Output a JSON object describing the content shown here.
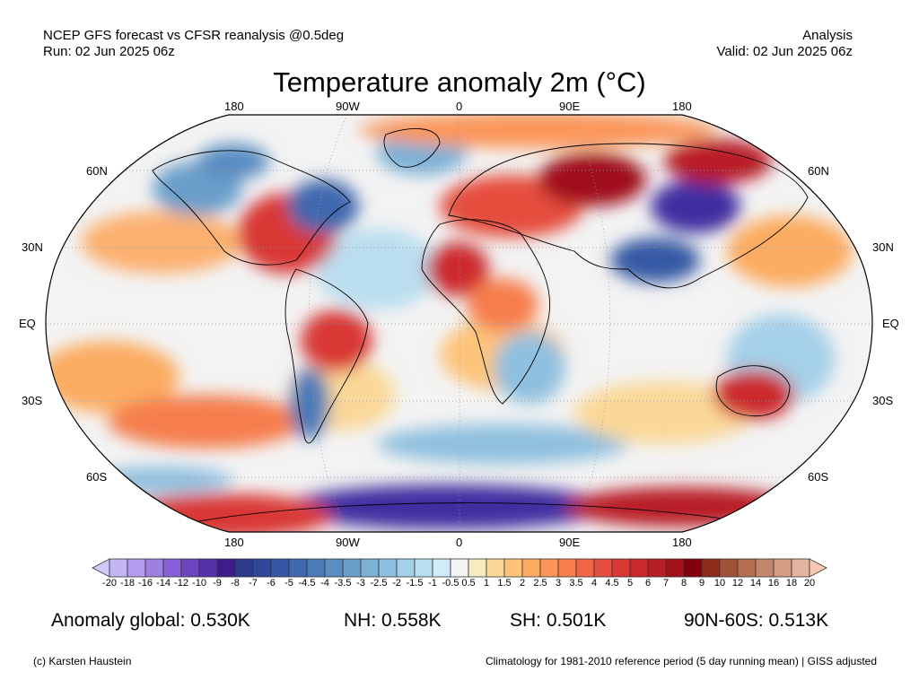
{
  "header": {
    "left_line1": "NCEP GFS forecast vs CFSR reanalysis @0.5deg",
    "left_line2": "Run: 02 Jun 2025 06z",
    "right_line1": "Analysis",
    "right_line2": "Valid: 02 Jun 2025 06z"
  },
  "title": "Temperature anomaly 2m (°C)",
  "map": {
    "lon_labels_top": [
      "180",
      "90W",
      "0",
      "90E",
      "180"
    ],
    "lon_labels_bottom": [
      "180",
      "90W",
      "0",
      "90E",
      "180"
    ],
    "lat_labels": [
      "60N",
      "30N",
      "EQ",
      "30S",
      "60S"
    ]
  },
  "colorbar": {
    "ticks": [
      "-20",
      "-18",
      "-16",
      "-14",
      "-12",
      "-10",
      "-9",
      "-8",
      "-7",
      "-6",
      "-5",
      "-4.5",
      "-4",
      "-3.5",
      "-3",
      "-2.5",
      "-2",
      "-1.5",
      "-1",
      "-0.5",
      "0.5",
      "1",
      "1.5",
      "2",
      "2.5",
      "3",
      "3.5",
      "4",
      "4.5",
      "5",
      "6",
      "7",
      "8",
      "9",
      "10",
      "12",
      "14",
      "16",
      "18",
      "20"
    ],
    "colors": [
      "#d2c8f8",
      "#c4b6f4",
      "#b19ced",
      "#9d80e2",
      "#865fd4",
      "#6d46bf",
      "#5632a8",
      "#3e1d8a",
      "#2c3a8c",
      "#30489c",
      "#3658a4",
      "#3f68ae",
      "#4a7ab8",
      "#5a8dc2",
      "#6a9fcb",
      "#7cb0d5",
      "#8fc0df",
      "#a4d0e8",
      "#badeef",
      "#d2ebf8",
      "#f3f3f3",
      "#f6ecc0",
      "#fad898",
      "#fdc47a",
      "#fcac62",
      "#fb9558",
      "#f67e4e",
      "#ef6646",
      "#e54d3e",
      "#d93836",
      "#cc292d",
      "#b81e25",
      "#a0111c",
      "#820010",
      "#8c2d1e",
      "#a2523a",
      "#b56e52",
      "#c4876c",
      "#d49d84",
      "#e3b49d",
      "#f8c9b0"
    ]
  },
  "stats": {
    "global": "Anomaly global: 0.530K",
    "nh": "NH: 0.558K",
    "sh": "SH: 0.501K",
    "band": "90N-60S: 0.513K"
  },
  "footer": {
    "credit": "(c) Karsten Haustein",
    "note": "Climatology for 1981-2010 reference period (5 day running mean) | GISS adjusted"
  }
}
